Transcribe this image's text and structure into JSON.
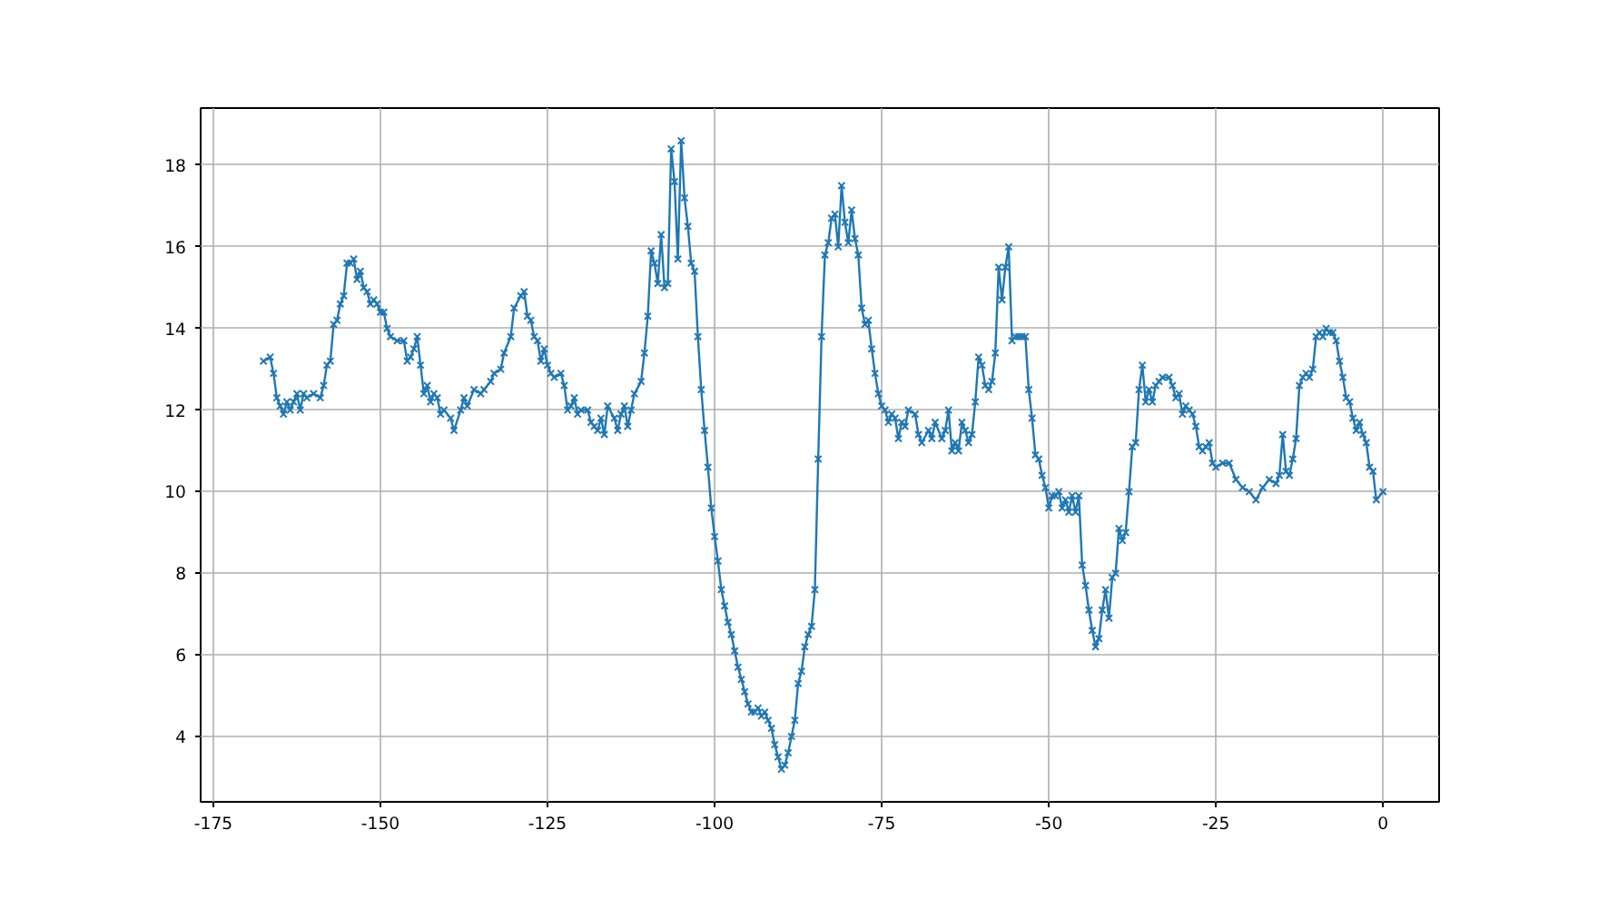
{
  "chart_data": {
    "type": "line",
    "marker": "cross",
    "line_style": "solid",
    "grid": true,
    "xlim": [
      -176.9,
      8.4
    ],
    "ylim": [
      2.4,
      19.4
    ],
    "xticks": [
      -175,
      -150,
      -125,
      -100,
      -75,
      -50,
      -25,
      0
    ],
    "yticks": [
      4,
      6,
      8,
      10,
      12,
      14,
      16,
      18
    ],
    "series": [
      {
        "color": "#1f77b4",
        "x": [
          -167.5,
          -166.5,
          -166,
          -165.5,
          -165,
          -164.5,
          -164,
          -163.5,
          -163,
          -162.5,
          -162,
          -161.5,
          -161,
          -160,
          -159,
          -158.5,
          -158,
          -157.5,
          -157,
          -156.5,
          -156,
          -155.5,
          -155,
          -154.5,
          -154,
          -153.5,
          -153,
          -152.5,
          -152,
          -151.5,
          -151,
          -150.5,
          -150,
          -149.5,
          -149,
          -148.5,
          -147.5,
          -146.5,
          -146,
          -145.5,
          -145,
          -144.5,
          -144,
          -143.5,
          -143,
          -142.5,
          -142,
          -141.5,
          -141,
          -140.5,
          -139.5,
          -139,
          -138,
          -137.5,
          -137,
          -136,
          -135,
          -134.5,
          -133.5,
          -133,
          -132,
          -131.5,
          -130.5,
          -130,
          -129,
          -128.5,
          -128,
          -127.5,
          -127,
          -126.5,
          -126,
          -125.5,
          -125,
          -124.5,
          -124,
          -123,
          -122.5,
          -122,
          -121.5,
          -121,
          -120.5,
          -120,
          -119,
          -118.5,
          -118,
          -117.5,
          -117,
          -116.5,
          -116,
          -115,
          -114.5,
          -114,
          -113.5,
          -113,
          -112.5,
          -112,
          -111,
          -110.5,
          -110,
          -109.5,
          -109,
          -108.5,
          -108,
          -107.5,
          -107,
          -106.5,
          -106,
          -105.5,
          -105,
          -104.5,
          -104,
          -103.5,
          -103,
          -102.5,
          -102,
          -101.5,
          -101,
          -100.5,
          -100,
          -99.5,
          -99,
          -98.5,
          -98,
          -97.5,
          -97,
          -96.5,
          -96,
          -95.5,
          -95,
          -94.5,
          -94,
          -93.5,
          -93,
          -92.5,
          -92,
          -91.5,
          -91,
          -90.5,
          -90,
          -89.5,
          -89,
          -88.5,
          -88,
          -87.5,
          -87,
          -86.5,
          -86,
          -85.5,
          -85,
          -84.5,
          -84,
          -83.5,
          -83,
          -82.5,
          -82,
          -81.5,
          -81,
          -80.5,
          -80,
          -79.5,
          -79,
          -78.5,
          -78,
          -77.5,
          -77,
          -76.5,
          -76,
          -75.5,
          -75,
          -74.5,
          -74,
          -73.5,
          -73,
          -72.5,
          -72,
          -71.5,
          -71,
          -70,
          -69.5,
          -69,
          -68,
          -67.5,
          -67,
          -66,
          -65.5,
          -65,
          -64.5,
          -64,
          -63.5,
          -63,
          -62.5,
          -62,
          -61.5,
          -61,
          -60.5,
          -60,
          -59.5,
          -59,
          -58.5,
          -58,
          -57.5,
          -57,
          -56.5,
          -56,
          -55.5,
          -55,
          -54.5,
          -54,
          -53.5,
          -53,
          -52.5,
          -52,
          -51.5,
          -51,
          -50.5,
          -50,
          -49.5,
          -49,
          -48.5,
          -48,
          -47.5,
          -47,
          -46.5,
          -46,
          -45.5,
          -45,
          -44.5,
          -44,
          -43.5,
          -43,
          -42.5,
          -42,
          -41.5,
          -41,
          -40.5,
          -40,
          -39.5,
          -39,
          -38.5,
          -38,
          -37.5,
          -37,
          -36.5,
          -36,
          -35.5,
          -35,
          -34.5,
          -34,
          -33.5,
          -33,
          -32,
          -31.5,
          -31,
          -30.5,
          -30,
          -29.5,
          -29,
          -28.5,
          -28,
          -27.5,
          -27,
          -26.5,
          -26,
          -25.5,
          -25,
          -24,
          -23,
          -22,
          -21,
          -20,
          -19,
          -18,
          -17,
          -16,
          -15.5,
          -15,
          -14.5,
          -14,
          -13.5,
          -13,
          -12.5,
          -12,
          -11.5,
          -11,
          -10.5,
          -10,
          -9.5,
          -9,
          -8.5,
          -8,
          -7.5,
          -7,
          -6.5,
          -6,
          -5.5,
          -5,
          -4.5,
          -4,
          -3.5,
          -3,
          -2.5,
          -2,
          -1.5,
          -1,
          0
        ],
        "values": [
          13.2,
          13.3,
          12.9,
          12.3,
          12.1,
          11.9,
          12.2,
          12.0,
          12.2,
          12.4,
          12.0,
          12.4,
          12.3,
          12.4,
          12.3,
          12.6,
          13.1,
          13.2,
          14.1,
          14.2,
          14.6,
          14.8,
          15.6,
          15.6,
          15.7,
          15.2,
          15.4,
          15.0,
          14.9,
          14.6,
          14.7,
          14.6,
          14.4,
          14.4,
          14.0,
          13.8,
          13.7,
          13.7,
          13.2,
          13.3,
          13.5,
          13.8,
          13.1,
          12.4,
          12.6,
          12.2,
          12.4,
          12.3,
          11.9,
          12.0,
          11.8,
          11.5,
          12.0,
          12.3,
          12.1,
          12.5,
          12.4,
          12.5,
          12.7,
          12.9,
          13.0,
          13.4,
          13.8,
          14.5,
          14.8,
          14.9,
          14.3,
          14.2,
          13.8,
          13.7,
          13.2,
          13.5,
          13.1,
          12.9,
          12.8,
          12.9,
          12.6,
          12.0,
          12.1,
          12.3,
          11.9,
          12.0,
          12.0,
          11.7,
          11.6,
          11.5,
          11.8,
          11.4,
          12.1,
          11.8,
          11.5,
          11.9,
          12.1,
          11.6,
          12.0,
          12.4,
          12.7,
          13.4,
          14.3,
          15.9,
          15.6,
          15.1,
          16.3,
          15.0,
          15.1,
          18.4,
          17.6,
          15.7,
          18.6,
          17.2,
          16.5,
          15.6,
          15.4,
          13.8,
          12.5,
          11.5,
          10.6,
          9.6,
          8.9,
          8.3,
          7.6,
          7.2,
          6.8,
          6.5,
          6.1,
          5.7,
          5.4,
          5.1,
          4.8,
          4.6,
          4.6,
          4.7,
          4.5,
          4.6,
          4.4,
          4.2,
          3.8,
          3.5,
          3.2,
          3.3,
          3.6,
          4.0,
          4.4,
          5.3,
          5.6,
          6.2,
          6.5,
          6.7,
          7.6,
          10.8,
          13.8,
          15.8,
          16.1,
          16.7,
          16.8,
          16.0,
          17.5,
          16.6,
          16.1,
          16.9,
          16.2,
          15.8,
          14.5,
          14.1,
          14.2,
          13.5,
          12.9,
          12.4,
          12.1,
          12.0,
          11.7,
          11.9,
          11.8,
          11.3,
          11.7,
          11.6,
          12.0,
          11.9,
          11.4,
          11.2,
          11.5,
          11.3,
          11.7,
          11.3,
          11.5,
          12.0,
          11.0,
          11.2,
          11.0,
          11.7,
          11.5,
          11.2,
          11.4,
          12.2,
          13.3,
          13.1,
          12.6,
          12.5,
          12.7,
          13.4,
          15.5,
          14.7,
          15.5,
          16.0,
          13.7,
          13.8,
          13.8,
          13.8,
          13.8,
          12.5,
          11.8,
          10.9,
          10.8,
          10.4,
          10.1,
          9.6,
          9.9,
          9.9,
          10.0,
          9.6,
          9.8,
          9.5,
          9.9,
          9.5,
          9.9,
          8.2,
          7.7,
          7.1,
          6.6,
          6.2,
          6.4,
          7.1,
          7.6,
          6.9,
          7.9,
          8.0,
          9.1,
          8.8,
          9.0,
          10.0,
          11.1,
          11.2,
          12.5,
          13.1,
          12.2,
          12.5,
          12.2,
          12.6,
          12.7,
          12.8,
          12.8,
          12.6,
          12.3,
          12.4,
          11.9,
          12.1,
          12.0,
          11.9,
          11.6,
          11.1,
          11.0,
          11.1,
          11.2,
          10.7,
          10.6,
          10.7,
          10.7,
          10.3,
          10.1,
          10.0,
          9.8,
          10.1,
          10.3,
          10.2,
          10.4,
          11.4,
          10.5,
          10.4,
          10.8,
          11.3,
          12.6,
          12.8,
          12.9,
          12.8,
          13.0,
          13.8,
          13.9,
          13.8,
          14.0,
          13.9,
          13.9,
          13.7,
          13.2,
          12.8,
          12.3,
          12.2,
          11.8,
          11.5,
          11.7,
          11.4,
          11.2,
          10.6,
          10.5,
          9.8,
          10.0
        ]
      }
    ]
  }
}
